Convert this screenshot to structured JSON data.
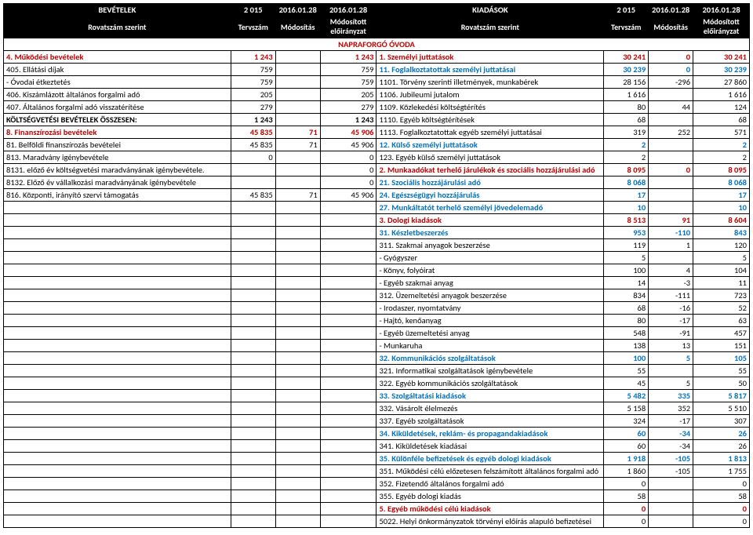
{
  "colors": {
    "red": "#c00000",
    "blue": "#0070c0",
    "headerBg": "#000000",
    "headerFg": "#ffffff"
  },
  "header": {
    "left_title": "BEVÉTELEK",
    "right_title": "KIADÁSOK",
    "y1": "2 015",
    "y2": "2016.01.28",
    "y3": "2016.01.28",
    "sub_rov": "Rovatszám szerint",
    "sub_terv": "Tervszám",
    "sub_mod": "Módosítás",
    "sub_modelo": "Módosított előirányzat"
  },
  "org": "NAPRAFORGÓ ÓVODA",
  "L": [
    {
      "t": "4. Működési bevételek",
      "v": [
        "1 243",
        "",
        "1 243"
      ],
      "c": "red"
    },
    {
      "t": "405. Ellátási díjak",
      "v": [
        "759",
        "",
        "759"
      ]
    },
    {
      "t": "  - Óvodai étkeztetés",
      "v": [
        "759",
        "",
        "759"
      ]
    },
    {
      "t": "406. Kiszámlázott általános forgalmi adó",
      "v": [
        "205",
        "",
        "205"
      ]
    },
    {
      "t": "407. Általános forgalmi adó visszatérítése",
      "v": [
        "279",
        "",
        "279"
      ]
    },
    {
      "t": "KÖLTSÉGVETÉSI BEVÉTELEK ÖSSZESEN:",
      "v": [
        "1 243",
        "",
        "1 243"
      ],
      "b": true
    },
    {
      "t": "8. Finanszírozási bevételek",
      "v": [
        "45 835",
        "71",
        "45 906"
      ],
      "c": "red"
    },
    {
      "t": "81. Belföldi finanszírozás bevételei",
      "v": [
        "45 835",
        "71",
        "45 906"
      ]
    },
    {
      "t": "813. Maradvány igénybevétele",
      "v": [
        "0",
        "",
        "0"
      ]
    },
    {
      "t": "8131. előző év költségvetési maradványának igénybevétele.",
      "v": [
        "",
        "",
        "0"
      ]
    },
    {
      "t": "8132. Előző év vállalkozási maradványának igénybevétele",
      "v": [
        "",
        "",
        "0"
      ]
    },
    {
      "t": "816. Központi, irányító szervi támogatás",
      "v": [
        "45 835",
        "71",
        "45 906"
      ]
    }
  ],
  "R": [
    {
      "t": "1. Személyi juttatások",
      "v": [
        "30 241",
        "0",
        "30 241"
      ],
      "c": "red"
    },
    {
      "t": "11. Foglalkoztatottak személyi juttatásai",
      "v": [
        "30 239",
        "0",
        "30 239"
      ],
      "c": "blue"
    },
    {
      "t": "1101. Törvény szerinti illetmények, munkabérek",
      "v": [
        "28 156",
        "-296",
        "27 860"
      ]
    },
    {
      "t": "1106. Jubileumi jutalom",
      "v": [
        "1 616",
        "",
        "1 616"
      ]
    },
    {
      "t": "1109. Közlekedési költségtérítés",
      "v": [
        "80",
        "44",
        "124"
      ]
    },
    {
      "t": "1110. Egyéb költségtérítések",
      "v": [
        "68",
        "",
        "68"
      ]
    },
    {
      "t": "1113. Foglalkoztatottak egyéb személyi juttatásai",
      "v": [
        "319",
        "252",
        "571"
      ]
    },
    {
      "t": "12. Külső személyi juttatások",
      "v": [
        "2",
        "",
        "2"
      ],
      "c": "blue"
    },
    {
      "t": "123. Egyéb külső személyi juttatások",
      "v": [
        "2",
        "",
        "2"
      ]
    },
    {
      "t": "2. Munkaadókat terhelő járulékok és szociális hozzájárulási adó",
      "v": [
        "8 095",
        "0",
        "8 095"
      ],
      "c": "red"
    },
    {
      "t": "21. Szociális hozzájárulási adó",
      "v": [
        "8 068",
        "",
        "8 068"
      ],
      "c": "blue"
    },
    {
      "t": "24. Egészségügyi hozzájárulás",
      "v": [
        "17",
        "",
        "17"
      ],
      "c": "blue"
    },
    {
      "t": "27. Munkáltatót terhelő személyi jövedelemadó",
      "v": [
        "10",
        "",
        "10"
      ],
      "c": "blue"
    },
    {
      "t": "3. Dologi kiadások",
      "v": [
        "8 513",
        "91",
        "8 604"
      ],
      "c": "red"
    },
    {
      "t": "31. Készletbeszerzés",
      "v": [
        "953",
        "-110",
        "843"
      ],
      "c": "blue"
    },
    {
      "t": "311. Szakmai anyagok beszerzése",
      "v": [
        "119",
        "1",
        "120"
      ]
    },
    {
      "t": "  - Gyógyszer",
      "v": [
        "5",
        "",
        "5"
      ]
    },
    {
      "t": "  - Könyv, folyóirat",
      "v": [
        "100",
        "4",
        "104"
      ]
    },
    {
      "t": "  - Egyéb szakmai anyag",
      "v": [
        "14",
        "-3",
        "11"
      ]
    },
    {
      "t": "312. Üzemeltetési anyagok beszerzése",
      "v": [
        "834",
        "-111",
        "723"
      ]
    },
    {
      "t": "  - Irodaszer, nyomtatvány",
      "v": [
        "68",
        "-16",
        "52"
      ]
    },
    {
      "t": "  - Hajtó, kenőanyag",
      "v": [
        "80",
        "-17",
        "63"
      ]
    },
    {
      "t": "  - Egyéb üzemeltetési anyag",
      "v": [
        "548",
        "-91",
        "457"
      ]
    },
    {
      "t": "  - Munkaruha",
      "v": [
        "138",
        "13",
        "151"
      ]
    },
    {
      "t": "32. Kommunikációs szolgáltatások",
      "v": [
        "100",
        "5",
        "105"
      ],
      "c": "blue"
    },
    {
      "t": "321. Informatikai szolgáltatások igénybevétele",
      "v": [
        "55",
        "",
        "55"
      ]
    },
    {
      "t": "322. Egyéb kommunikációs szolgáltatások",
      "v": [
        "45",
        "5",
        "50"
      ]
    },
    {
      "t": "33. Szolgáltatási kiadások",
      "v": [
        "5 482",
        "335",
        "5 817"
      ],
      "c": "blue"
    },
    {
      "t": "332. Vásárolt élelmezés",
      "v": [
        "5 158",
        "352",
        "5 510"
      ]
    },
    {
      "t": "337. Egyéb szolgáltatások",
      "v": [
        "324",
        "-17",
        "307"
      ]
    },
    {
      "t": "34. Kiküldetések, reklám- és propagandakiadások",
      "v": [
        "60",
        "-34",
        "26"
      ],
      "c": "blue"
    },
    {
      "t": "341. Kiküldetések kiadásai",
      "v": [
        "60",
        "-34",
        "26"
      ]
    },
    {
      "t": "35. Különféle befizetések és egyéb dologi kiadások",
      "v": [
        "1 918",
        "-105",
        "1 813"
      ],
      "c": "blue"
    },
    {
      "t": "351. Működési célú előzetesen felszámított általános forgalmi adó",
      "v": [
        "1 860",
        "-105",
        "1 755"
      ],
      "wrap": true
    },
    {
      "t": "352. Fizetendő általános forgalmi adó",
      "v": [
        "0",
        "",
        "0"
      ]
    },
    {
      "t": "355. Egyéb dologi kiadás",
      "v": [
        "58",
        "",
        "58"
      ]
    },
    {
      "t": "5. Egyéb működési célú kiadások",
      "v": [
        "0",
        "",
        "0"
      ],
      "c": "red"
    },
    {
      "t": "5022. Helyi önkormányzatok törvényi előírás alapuló befizetései",
      "v": [
        "0",
        "",
        "0"
      ],
      "wrap": true
    }
  ]
}
